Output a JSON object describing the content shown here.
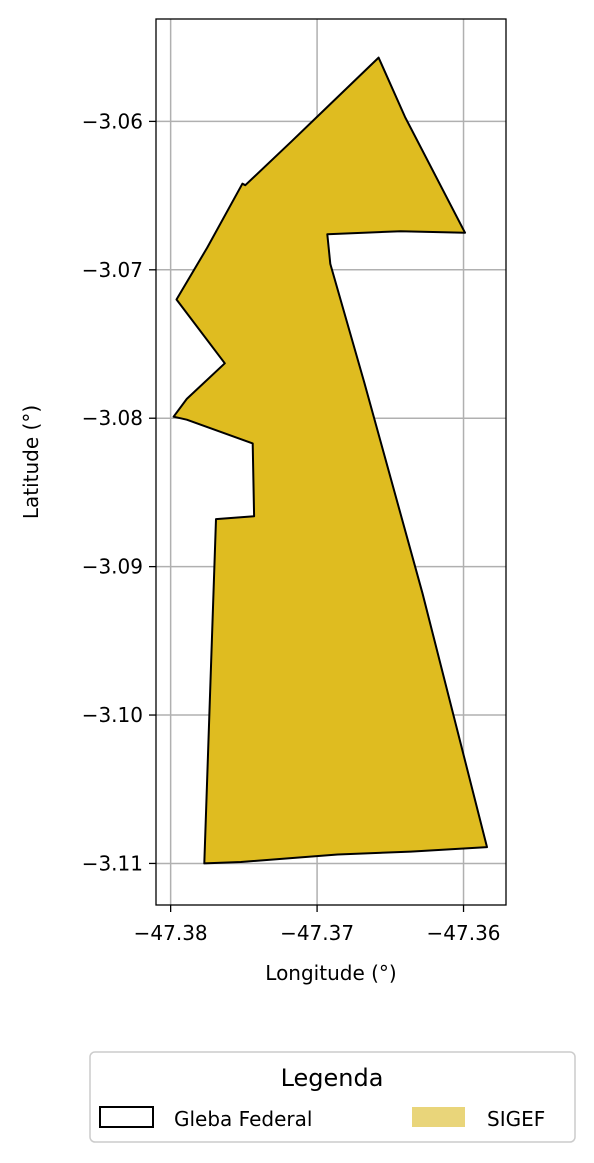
{
  "chart_data": {
    "type": "map",
    "xlabel": "Longitude (°)",
    "ylabel": "Latitude (°)",
    "xlim": [
      -47.381,
      -47.3571
    ],
    "ylim": [
      -3.1128,
      -3.0531
    ],
    "xticks": [
      {
        "value": -47.38,
        "label": "−47.38"
      },
      {
        "value": -47.37,
        "label": "−47.37"
      },
      {
        "value": -47.36,
        "label": "−47.36"
      }
    ],
    "yticks": [
      {
        "value": -3.06,
        "label": "−3.06"
      },
      {
        "value": -3.07,
        "label": "−3.07"
      },
      {
        "value": -3.08,
        "label": "−3.08"
      },
      {
        "value": -3.09,
        "label": "−3.09"
      },
      {
        "value": -3.1,
        "label": "−3.10"
      },
      {
        "value": -3.11,
        "label": "−3.11"
      }
    ],
    "grid": true,
    "layers": [
      {
        "name": "SIGEF",
        "fill": "#dfbc20",
        "stroke": "#000000",
        "polygon": [
          [
            -47.3658,
            -3.0557
          ],
          [
            -47.364,
            -3.0597
          ],
          [
            -47.3599,
            -3.0675
          ],
          [
            -47.3643,
            -3.0674
          ],
          [
            -47.3693,
            -3.0676
          ],
          [
            -47.3691,
            -3.0696
          ],
          [
            -47.3668,
            -3.0775
          ],
          [
            -47.3628,
            -3.0918
          ],
          [
            -47.3584,
            -3.1089
          ],
          [
            -47.3636,
            -3.1092
          ],
          [
            -47.3686,
            -3.1094
          ],
          [
            -47.3752,
            -3.1099
          ],
          [
            -47.3777,
            -3.11
          ],
          [
            -47.3769,
            -3.0868
          ],
          [
            -47.3743,
            -3.0866
          ],
          [
            -47.3744,
            -3.0817
          ],
          [
            -47.3789,
            -3.0801
          ],
          [
            -47.3798,
            -3.0799
          ],
          [
            -47.3789,
            -3.0787
          ],
          [
            -47.3763,
            -3.0763
          ],
          [
            -47.3796,
            -3.072
          ],
          [
            -47.3775,
            -3.0685
          ],
          [
            -47.3751,
            -3.0642
          ],
          [
            -47.3749,
            -3.0643
          ],
          [
            -47.3718,
            -3.0614
          ],
          [
            -47.3698,
            -3.0595
          ]
        ]
      }
    ],
    "legend": {
      "title": "Legenda",
      "placement": "below",
      "entries": [
        {
          "label": "Gleba Federal",
          "kind": "outline",
          "stroke": "#000000",
          "fill": "#ffffff"
        },
        {
          "label": "SIGEF",
          "kind": "patch",
          "fill": "#e9d57a"
        }
      ]
    }
  }
}
